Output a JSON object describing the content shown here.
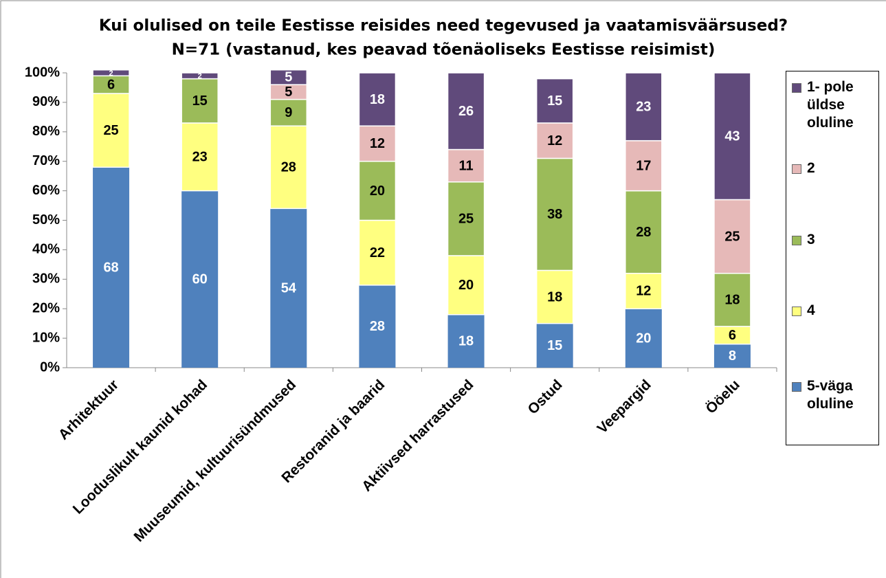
{
  "chart_data": {
    "type": "stacked_bar",
    "title": "Kui olulised on teile Eestisse reisides need tegevused ja vaatamisväärsused?",
    "subtitle": "N=71 (vastanud, kes peavad tõenäoliseks Eestisse reisimist)",
    "categories": [
      "Arhitektuur",
      "Looduslikult kaunid kohad",
      "Muuseumid, kultuurisündmused",
      "Restoranid ja baarid",
      "Aktiivsed harrastused",
      "Ostud",
      "Veepargid",
      "Ööelu"
    ],
    "series": [
      {
        "name": "5-väga oluline",
        "color": "#4f81bd",
        "label_color": "#ffffff",
        "values": [
          68,
          60,
          54,
          28,
          18,
          15,
          20,
          8
        ]
      },
      {
        "name": "4",
        "color": "#ffff80",
        "label_color": "#000000",
        "values": [
          25,
          23,
          28,
          22,
          20,
          18,
          12,
          6
        ]
      },
      {
        "name": "3",
        "color": "#9bbb59",
        "label_color": "#000000",
        "values": [
          6,
          15,
          9,
          20,
          25,
          38,
          28,
          18
        ]
      },
      {
        "name": "2",
        "color": "#e6b9b8",
        "label_color": "#000000",
        "values": [
          null,
          null,
          5,
          12,
          11,
          12,
          17,
          25
        ]
      },
      {
        "name": "1- pole üldse oluline",
        "color": "#604a7b",
        "label_color": "#ffffff",
        "values": [
          2,
          2,
          5,
          18,
          26,
          15,
          23,
          43
        ]
      }
    ],
    "ylim": [
      0,
      100
    ],
    "yticks": [
      {
        "value": 0,
        "label": "0%"
      },
      {
        "value": 10,
        "label": "10%"
      },
      {
        "value": 20,
        "label": "20%"
      },
      {
        "value": 30,
        "label": "30%"
      },
      {
        "value": 40,
        "label": "40%"
      },
      {
        "value": 50,
        "label": "50%"
      },
      {
        "value": 60,
        "label": "60%"
      },
      {
        "value": 70,
        "label": "70%"
      },
      {
        "value": 80,
        "label": "80%"
      },
      {
        "value": 90,
        "label": "90%"
      },
      {
        "value": 100,
        "label": "100%"
      }
    ],
    "legend": "right"
  }
}
